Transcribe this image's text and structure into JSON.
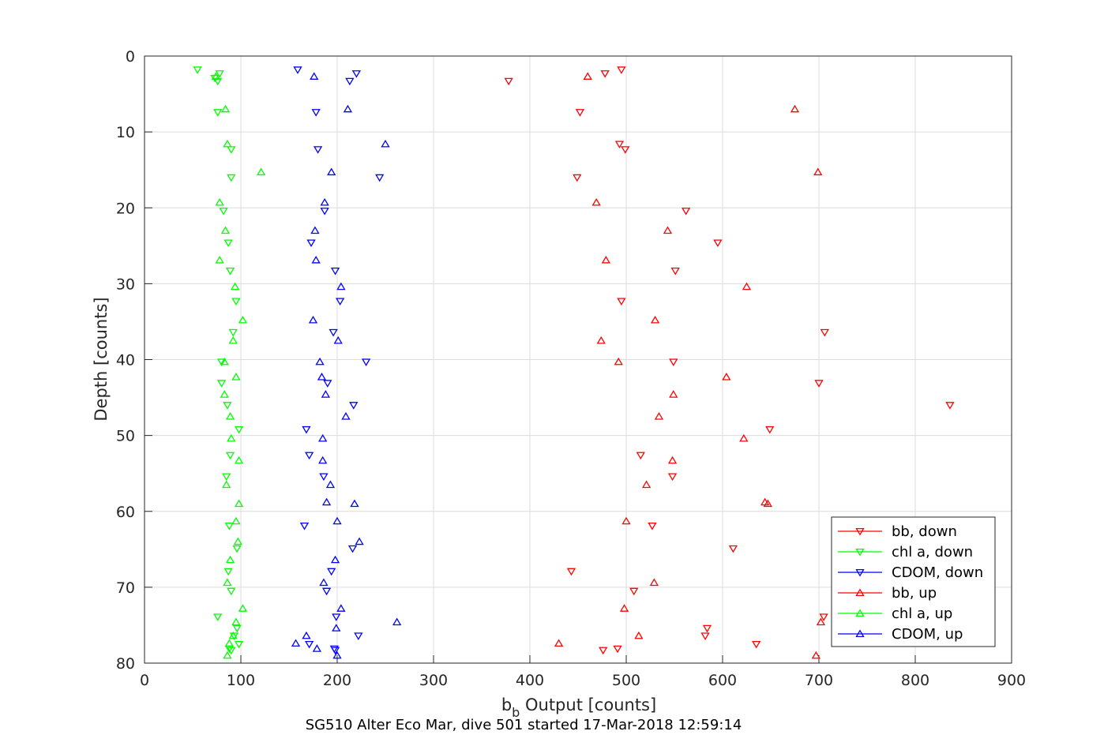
{
  "chart_data": {
    "type": "scatter",
    "xlabel_main": "b",
    "xlabel_sub": "b",
    "xlabel_rest": " Output [counts]",
    "ylabel": "Depth [counts]",
    "caption": "SG510 Alter Eco Mar, dive 501 started 17-Mar-2018 12:59:14",
    "xlim": [
      0,
      900
    ],
    "ylim": [
      0,
      80
    ],
    "y_reversed": true,
    "grid": true,
    "legend_position": "bottom-right",
    "x_ticks": [
      0,
      100,
      200,
      300,
      400,
      500,
      600,
      700,
      800,
      900
    ],
    "y_ticks": [
      0,
      10,
      20,
      30,
      40,
      50,
      60,
      70,
      80
    ],
    "series": [
      {
        "name": "bb, down",
        "color": "#ff0000",
        "marker": "triangle-down",
        "points": [
          [
            495,
            1.8
          ],
          [
            478,
            2.3
          ],
          [
            378,
            3.3
          ],
          [
            452,
            7.4
          ],
          [
            493,
            11.6
          ],
          [
            499,
            12.3
          ],
          [
            449,
            16.0
          ],
          [
            562,
            20.4
          ],
          [
            595,
            24.6
          ],
          [
            551,
            28.3
          ],
          [
            495,
            32.3
          ],
          [
            706,
            36.4
          ],
          [
            549,
            40.3
          ],
          [
            700,
            43.1
          ],
          [
            836,
            46.0
          ],
          [
            649,
            49.2
          ],
          [
            515,
            52.6
          ],
          [
            548,
            55.4
          ],
          [
            527,
            61.9
          ],
          [
            611,
            64.9
          ],
          [
            443,
            67.9
          ],
          [
            508,
            70.5
          ],
          [
            705,
            73.9
          ],
          [
            584,
            75.4
          ],
          [
            582,
            76.4
          ],
          [
            635,
            77.5
          ],
          [
            476,
            78.3
          ],
          [
            491,
            78.1
          ]
        ]
      },
      {
        "name": "chl a, down",
        "color": "#00ff00",
        "marker": "triangle-down",
        "points": [
          [
            55,
            1.8
          ],
          [
            78,
            2.3
          ],
          [
            73,
            2.9
          ],
          [
            76,
            3.3
          ],
          [
            76,
            7.4
          ],
          [
            90,
            12.3
          ],
          [
            90,
            16.0
          ],
          [
            82,
            20.4
          ],
          [
            87,
            24.6
          ],
          [
            89,
            28.3
          ],
          [
            95,
            32.3
          ],
          [
            92,
            36.4
          ],
          [
            80,
            40.3
          ],
          [
            80,
            43.1
          ],
          [
            86,
            46.0
          ],
          [
            98,
            49.2
          ],
          [
            89,
            52.6
          ],
          [
            85,
            55.4
          ],
          [
            88,
            61.9
          ],
          [
            96,
            64.9
          ],
          [
            87,
            67.9
          ],
          [
            90,
            70.5
          ],
          [
            76,
            73.9
          ],
          [
            96,
            75.4
          ],
          [
            93,
            76.4
          ],
          [
            98,
            77.5
          ],
          [
            88,
            78.1
          ],
          [
            90,
            78.3
          ]
        ]
      },
      {
        "name": "CDOM, down",
        "color": "#0000ff",
        "marker": "triangle-down",
        "points": [
          [
            159,
            1.8
          ],
          [
            220,
            2.3
          ],
          [
            213,
            3.3
          ],
          [
            178,
            7.4
          ],
          [
            180,
            12.3
          ],
          [
            244,
            16.0
          ],
          [
            187,
            20.4
          ],
          [
            173,
            24.6
          ],
          [
            198,
            28.3
          ],
          [
            203,
            32.3
          ],
          [
            196,
            36.4
          ],
          [
            230,
            40.3
          ],
          [
            190,
            43.1
          ],
          [
            217,
            46.0
          ],
          [
            168,
            49.2
          ],
          [
            171,
            52.6
          ],
          [
            186,
            55.4
          ],
          [
            166,
            61.9
          ],
          [
            216,
            64.9
          ],
          [
            194,
            67.9
          ],
          [
            189,
            70.5
          ],
          [
            199,
            73.9
          ],
          [
            222,
            76.4
          ],
          [
            171,
            77.5
          ],
          [
            197,
            78.1
          ],
          [
            198,
            78.3
          ]
        ]
      },
      {
        "name": "bb, up",
        "color": "#ff0000",
        "marker": "triangle-up",
        "points": [
          [
            460,
            2.7
          ],
          [
            675,
            7.0
          ],
          [
            699,
            15.3
          ],
          [
            469,
            19.3
          ],
          [
            543,
            23.0
          ],
          [
            479,
            26.9
          ],
          [
            625,
            30.4
          ],
          [
            530,
            34.8
          ],
          [
            474,
            37.5
          ],
          [
            492,
            40.3
          ],
          [
            604,
            42.3
          ],
          [
            549,
            44.6
          ],
          [
            534,
            47.5
          ],
          [
            622,
            50.4
          ],
          [
            548,
            53.3
          ],
          [
            521,
            56.5
          ],
          [
            644,
            58.8
          ],
          [
            647,
            59.0
          ],
          [
            500,
            61.3
          ],
          [
            529,
            69.4
          ],
          [
            498,
            72.8
          ],
          [
            702,
            74.6
          ],
          [
            513,
            76.4
          ],
          [
            430,
            77.4
          ],
          [
            697,
            79.0
          ]
        ]
      },
      {
        "name": "chl a, up",
        "color": "#00ff00",
        "marker": "triangle-up",
        "points": [
          [
            74,
            2.7
          ],
          [
            84,
            7.0
          ],
          [
            86,
            11.6
          ],
          [
            121,
            15.3
          ],
          [
            78,
            19.3
          ],
          [
            84,
            23.0
          ],
          [
            78,
            26.9
          ],
          [
            94,
            30.4
          ],
          [
            102,
            34.8
          ],
          [
            92,
            37.5
          ],
          [
            83,
            40.3
          ],
          [
            95,
            42.3
          ],
          [
            83,
            44.6
          ],
          [
            89,
            47.5
          ],
          [
            90,
            50.4
          ],
          [
            98,
            53.3
          ],
          [
            85,
            56.5
          ],
          [
            98,
            59.0
          ],
          [
            95,
            61.3
          ],
          [
            97,
            64.0
          ],
          [
            89,
            66.4
          ],
          [
            86,
            69.4
          ],
          [
            102,
            72.8
          ],
          [
            95,
            74.6
          ],
          [
            92,
            76.4
          ],
          [
            88,
            77.4
          ],
          [
            86,
            79.0
          ]
        ]
      },
      {
        "name": "CDOM, up",
        "color": "#0000ff",
        "marker": "triangle-up",
        "points": [
          [
            176,
            2.7
          ],
          [
            211,
            7.0
          ],
          [
            250,
            11.6
          ],
          [
            194,
            15.3
          ],
          [
            187,
            19.3
          ],
          [
            177,
            23.0
          ],
          [
            178,
            26.9
          ],
          [
            204,
            30.4
          ],
          [
            175,
            34.8
          ],
          [
            201,
            37.5
          ],
          [
            182,
            40.3
          ],
          [
            184,
            42.3
          ],
          [
            188,
            44.6
          ],
          [
            209,
            47.5
          ],
          [
            185,
            50.4
          ],
          [
            185,
            53.3
          ],
          [
            193,
            56.5
          ],
          [
            189,
            58.8
          ],
          [
            218,
            59.0
          ],
          [
            200,
            61.3
          ],
          [
            223,
            64.0
          ],
          [
            198,
            66.4
          ],
          [
            186,
            69.4
          ],
          [
            204,
            72.8
          ],
          [
            262,
            74.6
          ],
          [
            199,
            75.4
          ],
          [
            168,
            76.4
          ],
          [
            157,
            77.4
          ],
          [
            179,
            78.1
          ],
          [
            200,
            79.0
          ]
        ]
      }
    ]
  }
}
